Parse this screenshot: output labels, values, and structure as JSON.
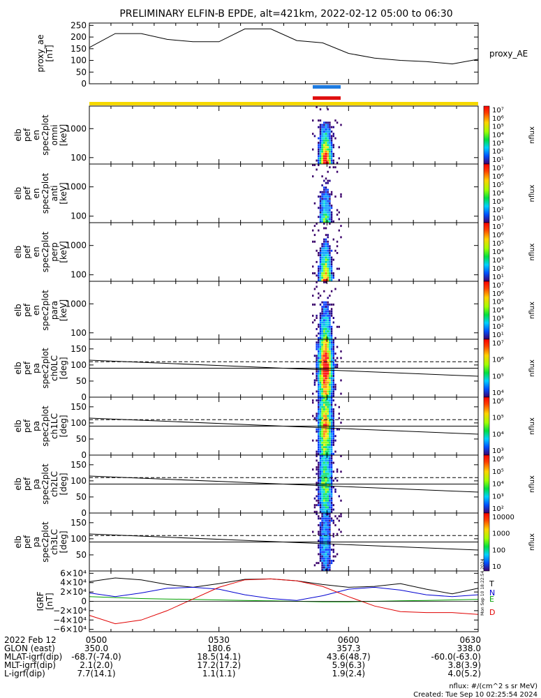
{
  "title": "PRELIMINARY ELFIN-B EPDE, alt=421km, 2022-02-12 05:00 to 06:30",
  "chart_data": [
    {
      "type": "line",
      "panel": "proxy_ae",
      "ylabel_lines": [
        "proxy_ae",
        "[nT]"
      ],
      "legend": "proxy_AE",
      "ylim": [
        0,
        260
      ],
      "yticks": [
        "250",
        "200",
        "150",
        "100",
        "50",
        "0"
      ],
      "ytick_values": [
        250,
        200,
        150,
        100,
        50,
        0
      ],
      "x_minutes": [
        0,
        6,
        12,
        18,
        24,
        30,
        36,
        42,
        48,
        54,
        60,
        66,
        72,
        78,
        84,
        90
      ],
      "values": [
        155,
        215,
        215,
        190,
        180,
        180,
        235,
        235,
        185,
        175,
        130,
        110,
        100,
        95,
        85,
        105
      ]
    },
    {
      "type": "heatmap",
      "panel": "omni",
      "ylabel_lines": [
        "elb",
        "pef",
        "en",
        "spec2plot",
        "omni",
        "[keV]"
      ],
      "yticks": [
        "1000",
        "100"
      ],
      "ytick_values": [
        1000,
        100
      ],
      "ylim": [
        60,
        6000
      ],
      "yscale": "log",
      "colorbar": {
        "label": "nflux",
        "ticks": [
          "10⁷",
          "10⁶",
          "10⁵",
          "10⁴",
          "10³",
          "10²",
          "10¹"
        ]
      }
    },
    {
      "type": "heatmap",
      "panel": "anti",
      "ylabel_lines": [
        "elb",
        "pef",
        "en",
        "spec2plot",
        "anti",
        "[keV]"
      ],
      "yticks": [
        "1000",
        "100"
      ],
      "ytick_values": [
        1000,
        100
      ],
      "ylim": [
        60,
        6000
      ],
      "yscale": "log",
      "colorbar": {
        "label": "nflux",
        "ticks": [
          "10⁷",
          "10⁶",
          "10⁵",
          "10⁴",
          "10³",
          "10²",
          "10¹"
        ]
      }
    },
    {
      "type": "heatmap",
      "panel": "perp",
      "ylabel_lines": [
        "elb",
        "pef",
        "en",
        "spec2plot",
        "perp",
        "[keV]"
      ],
      "yticks": [
        "1000",
        "100"
      ],
      "ytick_values": [
        1000,
        100
      ],
      "ylim": [
        60,
        6000
      ],
      "yscale": "log",
      "colorbar": {
        "label": "nflux",
        "ticks": [
          "10⁷",
          "10⁶",
          "10⁵",
          "10⁴",
          "10³",
          "10²",
          "10¹"
        ]
      }
    },
    {
      "type": "heatmap",
      "panel": "para",
      "ylabel_lines": [
        "elb",
        "pef",
        "en",
        "spec2plot",
        "para",
        "[keV]"
      ],
      "yticks": [
        "1000",
        "100"
      ],
      "ytick_values": [
        1000,
        100
      ],
      "ylim": [
        60,
        6000
      ],
      "yscale": "log",
      "colorbar": {
        "label": "nflux",
        "ticks": [
          "10⁷",
          "10⁶",
          "10⁵",
          "10⁴",
          "10³",
          "10²",
          "10¹"
        ]
      }
    },
    {
      "type": "heatmap",
      "panel": "ch0LC",
      "ylabel_lines": [
        "elb",
        "pef",
        "pa",
        "spec2plot",
        "ch0LC",
        "[deg]"
      ],
      "yticks": [
        "150",
        "100",
        "50",
        "0"
      ],
      "ytick_values": [
        150,
        100,
        50,
        0
      ],
      "ylim": [
        0,
        180
      ],
      "colorbar": {
        "label": "nflux",
        "ticks": [
          "10⁷",
          "10⁶",
          "10⁵",
          "10⁴"
        ]
      }
    },
    {
      "type": "heatmap",
      "panel": "ch1LC",
      "ylabel_lines": [
        "elb",
        "pef",
        "pa",
        "spec2plot",
        "ch1LC",
        "[deg]"
      ],
      "yticks": [
        "150",
        "100",
        "50",
        "0"
      ],
      "ytick_values": [
        150,
        100,
        50,
        0
      ],
      "ylim": [
        0,
        180
      ],
      "colorbar": {
        "label": "nflux",
        "ticks": [
          "10⁶",
          "10⁵",
          "10⁴",
          "10³"
        ]
      }
    },
    {
      "type": "heatmap",
      "panel": "ch2LC",
      "ylabel_lines": [
        "elb",
        "pef",
        "pa",
        "spec2plot",
        "ch2LC",
        "[deg]"
      ],
      "yticks": [
        "150",
        "100",
        "50",
        "0"
      ],
      "ytick_values": [
        150,
        100,
        50,
        0
      ],
      "ylim": [
        0,
        180
      ],
      "colorbar": {
        "label": "nflux",
        "ticks": [
          "10⁶",
          "10⁵",
          "10⁴",
          "10³",
          "10²"
        ]
      }
    },
    {
      "type": "heatmap",
      "panel": "ch3LC",
      "ylabel_lines": [
        "elb",
        "pef",
        "pa",
        "spec2plot",
        "ch3LC",
        "[deg]"
      ],
      "yticks": [
        "150",
        "100",
        "50"
      ],
      "ytick_values": [
        150,
        100,
        50
      ],
      "ylim": [
        0,
        180
      ],
      "colorbar": {
        "label": "nflux",
        "ticks": [
          "10000",
          "1000",
          "100",
          "10"
        ]
      }
    },
    {
      "type": "line",
      "panel": "IGRF",
      "ylabel_lines": [
        "IGRF",
        "[nT]"
      ],
      "ylim": [
        -65000,
        65000
      ],
      "yticks": [
        "6×10⁴",
        "4×10⁴",
        "2×10⁴",
        "0",
        "−2×10⁴",
        "−4×10⁴",
        "−6×10⁴"
      ],
      "ytick_values": [
        60000,
        40000,
        20000,
        0,
        -20000,
        -40000,
        -60000
      ],
      "x_minutes": [
        0,
        6,
        12,
        18,
        24,
        30,
        36,
        42,
        48,
        54,
        60,
        66,
        72,
        78,
        84,
        90
      ],
      "series": [
        {
          "name": "T",
          "color": "#000000",
          "values": [
            42000,
            50000,
            46000,
            36000,
            30000,
            38000,
            47000,
            48000,
            44000,
            36000,
            30000,
            32000,
            38000,
            26000,
            16000,
            28000
          ]
        },
        {
          "name": "N",
          "color": "#0000d0",
          "values": [
            18000,
            10000,
            18000,
            28000,
            30000,
            26000,
            14000,
            6000,
            2000,
            12000,
            26000,
            30000,
            24000,
            14000,
            10000,
            14000
          ]
        },
        {
          "name": "E",
          "color": "#00a000",
          "values": [
            10000,
            8000,
            6000,
            5000,
            4000,
            3000,
            2000,
            1000,
            0,
            -1000,
            -1000,
            0,
            1000,
            2000,
            3000,
            4000
          ]
        },
        {
          "name": "D",
          "color": "#e00000",
          "values": [
            -30000,
            -48000,
            -40000,
            -20000,
            5000,
            30000,
            46000,
            48000,
            44000,
            32000,
            10000,
            -10000,
            -22000,
            -24000,
            -24000,
            -28000
          ]
        }
      ]
    }
  ],
  "xaxis": {
    "rows": [
      {
        "label": "2022 Feb 12",
        "values": [
          "0500",
          "0530",
          "0600",
          "0630"
        ]
      },
      {
        "label": "GLON (east)",
        "values": [
          "350.0",
          "180.6",
          "357.3",
          "338.0"
        ]
      },
      {
        "label": "MLAT-igrf(dip)",
        "values": [
          "-68.7(-74.0)",
          "18.5(14.1)",
          "43.6(48.7)",
          "-60.0(-63.0)"
        ]
      },
      {
        "label": "MLT-igrf(dip)",
        "values": [
          "2.1(2.0)",
          "17.2(17.2)",
          "5.9(6.3)",
          "3.8(3.9)"
        ]
      },
      {
        "label": "L-igrf(dip)",
        "values": [
          "7.7(14.1)",
          "1.1(1.1)",
          "1.9(2.4)",
          "4.0(5.2)"
        ]
      }
    ]
  },
  "footer": {
    "units": "nflux: #/(cm^2 s sr MeV)",
    "created": "Created: Tue Sep 10 02:25:54 2024",
    "side_stamp": "Mon Sep 10 18:22:54 2024"
  },
  "colors": {
    "yellow_bar": "#f5d800",
    "blue_bar": "#1e7be0",
    "red_bar": "#e01010"
  }
}
